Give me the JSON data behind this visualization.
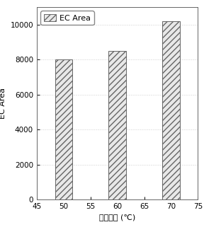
{
  "categories": [
    50,
    60,
    70
  ],
  "values": [
    8000,
    8500,
    10200
  ],
  "bar_width": 3.2,
  "xlim": [
    45,
    75
  ],
  "ylim": [
    0,
    11000
  ],
  "xticks": [
    45,
    50,
    55,
    60,
    65,
    70,
    75
  ],
  "yticks": [
    0,
    2000,
    4000,
    6000,
    8000,
    10000
  ],
  "xlabel": "萃取温度 (℃)",
  "ylabel": "EC Area",
  "legend_label": "EC Area",
  "hatch_pattern": "////",
  "bar_facecolor": "#e8e8e8",
  "bar_edgecolor": "#666666",
  "background_color": "#ffffff",
  "axis_fontsize": 8,
  "tick_fontsize": 7.5,
  "legend_fontsize": 8
}
